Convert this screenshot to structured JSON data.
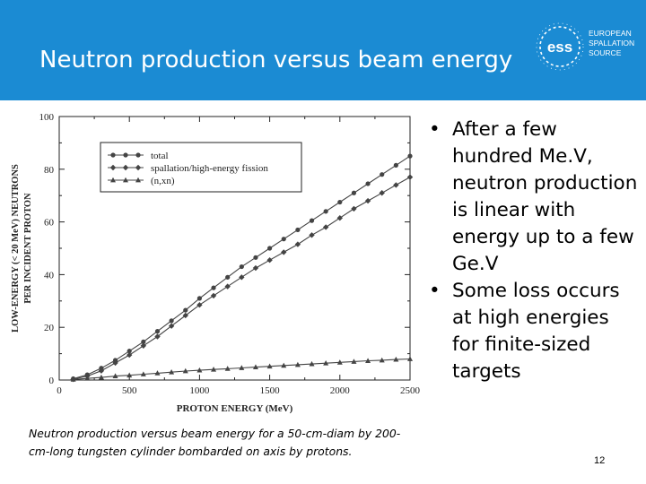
{
  "slide": {
    "title": "Neutron production versus beam energy",
    "logo": {
      "mark": "ess",
      "line1": "EUROPEAN",
      "line2": "SPALLATION",
      "line3": "SOURCE"
    },
    "bullets": [
      "After a few hundred Me.V, neutron production is linear with energy up to a few Ge.V",
      "Some loss occurs at high energies for finite-sized targets"
    ],
    "caption": "Neutron production versus beam energy for a 50-cm-diam by 200-cm-long tungsten cylinder bombarded on axis by protons.",
    "page_number": "12",
    "colors": {
      "header": "#1b8bd3",
      "text": "#000000",
      "plot_line": "#444444"
    }
  },
  "chart_data": {
    "type": "line",
    "xlabel": "PROTON ENERGY (MeV)",
    "ylabel_line1": "LOW-ENERGY (< 20 MeV) NEUTRONS",
    "ylabel_line2": "PER INCIDENT PROTON",
    "xlim": [
      0,
      2500
    ],
    "ylim": [
      0,
      100
    ],
    "xticks": [
      "0",
      "500",
      "1000",
      "1500",
      "2000",
      "2500"
    ],
    "yticks": [
      "0",
      "20",
      "40",
      "60",
      "80",
      "100"
    ],
    "legend_position": "top-left",
    "grid": false,
    "series": [
      {
        "name": "total",
        "marker": "circle",
        "x": [
          100,
          200,
          300,
          400,
          500,
          600,
          700,
          800,
          900,
          1000,
          1100,
          1200,
          1300,
          1400,
          1500,
          1600,
          1700,
          1800,
          1900,
          2000,
          2100,
          2200,
          2300,
          2400,
          2500
        ],
        "y": [
          0.5,
          2,
          4.5,
          7.5,
          11,
          14.5,
          18.5,
          22.5,
          26.5,
          31,
          35,
          39,
          43,
          46.5,
          50,
          53.5,
          57,
          60.5,
          64,
          67.5,
          71,
          74.5,
          78,
          81.5,
          85
        ]
      },
      {
        "name": "spallation/high-energy fission",
        "marker": "diamond",
        "x": [
          100,
          200,
          300,
          400,
          500,
          600,
          700,
          800,
          900,
          1000,
          1100,
          1200,
          1300,
          1400,
          1500,
          1600,
          1700,
          1800,
          1900,
          2000,
          2100,
          2200,
          2300,
          2400,
          2500
        ],
        "y": [
          0.3,
          1.5,
          3.5,
          6.5,
          9.5,
          13,
          16.5,
          20.5,
          24.5,
          28.5,
          32,
          35.5,
          39,
          42.5,
          45.5,
          48.5,
          51.5,
          55,
          58,
          61.5,
          65,
          68,
          71,
          74,
          77
        ]
      },
      {
        "name": "(n,xn)",
        "marker": "triangle",
        "x": [
          100,
          200,
          300,
          400,
          500,
          600,
          700,
          800,
          900,
          1000,
          1100,
          1200,
          1300,
          1400,
          1500,
          1600,
          1700,
          1800,
          1900,
          2000,
          2100,
          2200,
          2300,
          2400,
          2500
        ],
        "y": [
          0.2,
          0.6,
          1,
          1.5,
          1.8,
          2.2,
          2.6,
          3,
          3.4,
          3.7,
          4,
          4.3,
          4.6,
          4.9,
          5.2,
          5.5,
          5.8,
          6.1,
          6.4,
          6.7,
          7,
          7.3,
          7.5,
          7.8,
          8
        ]
      }
    ]
  }
}
